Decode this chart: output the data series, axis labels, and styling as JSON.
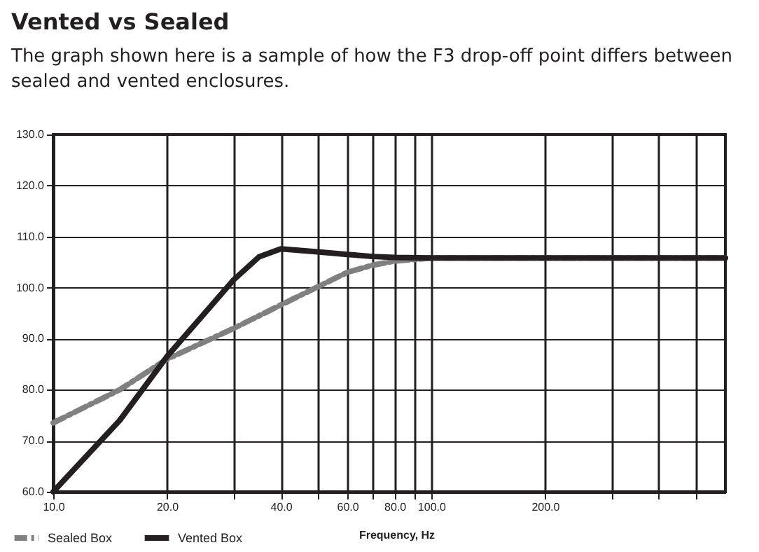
{
  "chart_data": {
    "type": "line",
    "title": "Vented vs Sealed",
    "subtitle": "The graph shown here is a sample of how the F3 drop-off point differs between sealed and vented enclosures.",
    "xlabel": "Frequency, Hz",
    "series": [
      {
        "name": "Sealed Box",
        "color": "#808080",
        "line_style": "dashed",
        "x": [
          10,
          15,
          20,
          30,
          40,
          60,
          70,
          80,
          100,
          200,
          600
        ],
        "values": [
          73.5,
          80,
          86,
          92,
          96.6,
          103,
          104.4,
          105.2,
          105.8,
          105.8,
          105.8
        ]
      },
      {
        "name": "Vented Box",
        "color": "#231f20",
        "line_style": "solid",
        "x": [
          10,
          15,
          20,
          30,
          35,
          40,
          50,
          60,
          70,
          80,
          100,
          200,
          600
        ],
        "values": [
          60,
          74,
          86.5,
          101.5,
          106,
          107.6,
          107,
          106.5,
          106.1,
          105.9,
          105.8,
          105.8,
          105.8
        ]
      }
    ],
    "log": "x",
    "xlim": [
      10,
      600
    ],
    "xticks": [
      {
        "value": 10,
        "label": "10.0"
      },
      {
        "value": 20,
        "label": "20.0"
      },
      {
        "value": 30,
        "label": null
      },
      {
        "value": 40,
        "label": "40.0"
      },
      {
        "value": 50,
        "label": null
      },
      {
        "value": 60,
        "label": "60.0"
      },
      {
        "value": 70,
        "label": null
      },
      {
        "value": 80,
        "label": "80.0"
      },
      {
        "value": 90,
        "label": null
      },
      {
        "value": 100,
        "label": "100.0"
      },
      {
        "value": 200,
        "label": "200.0"
      },
      {
        "value": 300,
        "label": null
      },
      {
        "value": 400,
        "label": null
      },
      {
        "value": 500,
        "label": null
      }
    ],
    "ylim": [
      60,
      130
    ],
    "yticks": [
      {
        "value": 60,
        "label": "60.0"
      },
      {
        "value": 70,
        "label": "70.0"
      },
      {
        "value": 80,
        "label": "80.0"
      },
      {
        "value": 90,
        "label": "90.0"
      },
      {
        "value": 100,
        "label": "100.0"
      },
      {
        "value": 110,
        "label": "110.0"
      },
      {
        "value": 120,
        "label": "120.0"
      },
      {
        "value": 130,
        "label": "130.0"
      }
    ],
    "grid": true,
    "legend": "bottom left"
  }
}
